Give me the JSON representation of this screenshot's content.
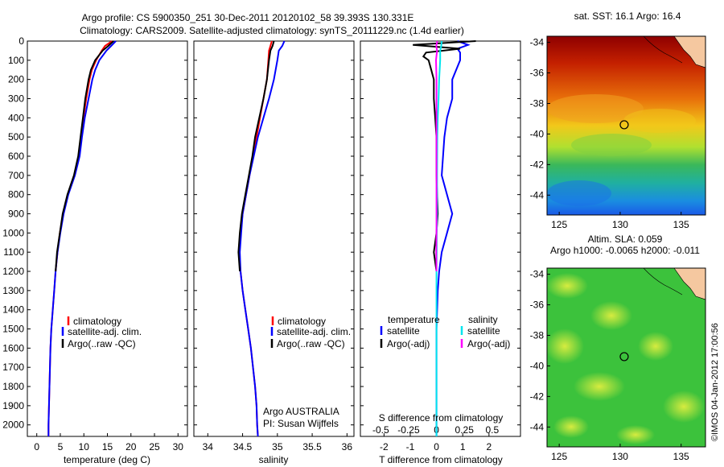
{
  "header": {
    "line1": "Argo profile: CS 5900350_251 30-Dec-2011 20120102_58 39.393S 130.331E",
    "line2": "Climatology: CARS2009. Satellite-adjusted climatology: synTS_20111229.nc (1.4d earlier)"
  },
  "colors": {
    "climatology": "#ff0000",
    "satellite": "#0000ff",
    "argo": "#000000",
    "sat_s": "#00e5ee",
    "argo_s": "#ff00ff"
  },
  "chart_data": [
    {
      "type": "line",
      "id": "temperature",
      "xlabel": "temperature (deg C)",
      "ylabel": "",
      "xlim": [
        -2,
        32
      ],
      "ylim": [
        2060,
        0
      ],
      "xticks": [
        0,
        5,
        10,
        15,
        20,
        25,
        30
      ],
      "yticks": [
        0,
        100,
        200,
        300,
        400,
        500,
        600,
        700,
        800,
        900,
        1000,
        1100,
        1200,
        1300,
        1400,
        1500,
        1600,
        1700,
        1800,
        1900,
        2000
      ],
      "legend": [
        "climatology",
        "satellite-adj. clim.",
        "Argo(..raw -QC)"
      ],
      "series": [
        {
          "name": "climatology",
          "color": "#ff0000",
          "depth": [
            0,
            25,
            50,
            100,
            150,
            200,
            300,
            400,
            500,
            600,
            700,
            800,
            900,
            1000,
            1100,
            1200,
            1300,
            1400,
            1500,
            1600,
            1700,
            1800,
            1900,
            2000,
            2060
          ],
          "values": [
            16.0,
            14.5,
            13.8,
            12.6,
            11.7,
            11.2,
            10.5,
            9.9,
            9.4,
            8.9,
            8.0,
            6.6,
            5.6,
            4.9,
            4.4,
            4.0,
            3.7,
            3.4,
            3.1,
            2.9,
            2.8,
            2.7,
            2.6,
            2.5,
            2.5
          ]
        },
        {
          "name": "satellite-adj. clim.",
          "color": "#0000ff",
          "depth": [
            0,
            25,
            50,
            100,
            150,
            200,
            300,
            400,
            500,
            600,
            700,
            800,
            900,
            1000,
            1100,
            1200,
            1300,
            1400,
            1500,
            1600,
            1700,
            1800,
            1900,
            2000,
            2060
          ],
          "values": [
            16.8,
            15.8,
            14.8,
            13.3,
            12.4,
            11.8,
            11.0,
            10.2,
            9.6,
            9.1,
            8.1,
            6.7,
            5.7,
            5.0,
            4.4,
            4.0,
            3.7,
            3.4,
            3.1,
            2.9,
            2.8,
            2.7,
            2.6,
            2.5,
            2.5
          ]
        },
        {
          "name": "Argo(..raw -QC)",
          "color": "#000000",
          "depth": [
            0,
            25,
            50,
            100,
            150,
            200,
            300,
            400,
            500,
            600,
            700,
            800,
            900,
            1000,
            1100,
            1200
          ],
          "values": [
            16.3,
            15.2,
            14.0,
            12.4,
            11.5,
            11.0,
            10.3,
            9.8,
            9.3,
            8.8,
            7.9,
            6.5,
            5.5,
            4.9,
            4.3,
            4.0
          ]
        }
      ]
    },
    {
      "type": "line",
      "id": "salinity",
      "xlabel": "salinity",
      "ylabel": "",
      "xlim": [
        33.8,
        36.1
      ],
      "ylim": [
        2060,
        0
      ],
      "xticks": [
        34,
        34.5,
        35,
        35.5,
        36
      ],
      "legend": [
        "climatology",
        "satellite-adj. clim.",
        "Argo(..raw -QC)"
      ],
      "annotation": [
        "Argo AUSTRALIA",
        "PI: Susan Wijffels"
      ],
      "series": [
        {
          "name": "climatology",
          "color": "#ff0000",
          "depth": [
            0,
            25,
            50,
            100,
            200,
            300,
            400,
            500,
            600,
            700,
            800,
            900,
            1000,
            1100,
            1200,
            1300,
            1400,
            1500,
            1600,
            1700,
            1800,
            1900,
            2000,
            2060
          ],
          "values": [
            34.92,
            34.9,
            34.88,
            34.87,
            34.85,
            34.8,
            34.75,
            34.7,
            34.65,
            34.6,
            34.55,
            34.5,
            34.47,
            34.45,
            34.47,
            34.5,
            34.54,
            34.58,
            34.62,
            34.65,
            34.68,
            34.7,
            34.71,
            34.72
          ]
        },
        {
          "name": "satellite-adj. clim.",
          "color": "#0000ff",
          "depth": [
            0,
            25,
            50,
            100,
            200,
            300,
            400,
            500,
            600,
            700,
            800,
            900,
            1000,
            1100,
            1200,
            1300,
            1400,
            1500,
            1600,
            1700,
            1800,
            1900,
            2000,
            2060
          ],
          "values": [
            35.1,
            35.07,
            35.02,
            35.0,
            34.95,
            34.88,
            34.8,
            34.72,
            34.66,
            34.6,
            34.55,
            34.5,
            34.48,
            34.46,
            34.47,
            34.5,
            34.54,
            34.58,
            34.62,
            34.65,
            34.68,
            34.7,
            34.71,
            34.72
          ]
        },
        {
          "name": "Argo(..raw -QC)",
          "color": "#000000",
          "depth": [
            0,
            25,
            50,
            100,
            200,
            300,
            400,
            500,
            600,
            700,
            800,
            900,
            1000,
            1100,
            1200
          ],
          "values": [
            34.95,
            34.93,
            34.9,
            34.88,
            34.85,
            34.8,
            34.74,
            34.68,
            34.64,
            34.59,
            34.54,
            34.49,
            34.46,
            34.44,
            34.46
          ]
        }
      ]
    },
    {
      "type": "line",
      "id": "difference",
      "xlabel": "T difference from climatology",
      "title_bottom": "S difference from climatology",
      "xlim": [
        -2.9,
        3.2
      ],
      "ylim": [
        2060,
        0
      ],
      "xticks": [
        -2,
        -1,
        0,
        1,
        2
      ],
      "secondary_xticks": [
        "-0.5",
        "-0.25",
        "0",
        "0.25",
        "0.5"
      ],
      "legend": {
        "temperature": [
          "satellite",
          "Argo(-adj)"
        ],
        "salinity": [
          "satellite",
          "Argo(-adj)"
        ]
      },
      "series": [
        {
          "name": "T satellite",
          "color": "#0000ff",
          "depth": [
            0,
            20,
            40,
            60,
            100,
            200,
            300,
            400,
            500,
            700,
            900,
            1000,
            1100,
            1200,
            1300,
            1500,
            1700,
            1900,
            2060
          ],
          "values": [
            0.8,
            1.2,
            0.8,
            0.9,
            0.9,
            0.6,
            0.6,
            0.4,
            0.3,
            0.2,
            0.6,
            0.4,
            0.2,
            0.1,
            0.05,
            0.0,
            0.0,
            0.0,
            0.0
          ]
        },
        {
          "name": "T Argo(-adj)",
          "color": "#000000",
          "depth": [
            0,
            20,
            40,
            60,
            80,
            100,
            150,
            200,
            300,
            400,
            500,
            700,
            900,
            1000,
            1100,
            1200
          ],
          "values": [
            1.5,
            -0.9,
            0.9,
            -0.4,
            -0.5,
            -0.3,
            -0.2,
            -0.1,
            -0.1,
            -0.05,
            0.0,
            0.0,
            0.05,
            0.0,
            -0.1,
            0.0
          ]
        },
        {
          "name": "S satellite",
          "color": "#00e5ee",
          "depth": [
            0,
            25,
            50,
            100,
            200,
            300,
            400,
            500,
            700,
            900,
            1000,
            1100,
            1200,
            1300,
            1500,
            1700,
            1900,
            2060
          ],
          "values": [
            0.2,
            0.18,
            0.14,
            0.14,
            0.1,
            0.08,
            0.05,
            0.03,
            0.02,
            0.02,
            0.01,
            0.01,
            0.0,
            0.0,
            0.0,
            0.0,
            0.0,
            0.0
          ]
        },
        {
          "name": "S Argo(-adj)",
          "color": "#ff00ff",
          "depth": [
            0,
            25,
            50,
            100,
            200,
            300,
            400,
            500,
            700,
            900,
            1000,
            1100,
            1200
          ],
          "values": [
            0.03,
            -0.01,
            0.02,
            -0.02,
            0.0,
            0.0,
            0.0,
            0.0,
            0.0,
            0.0,
            0.0,
            -0.01,
            0.0
          ]
        }
      ]
    },
    {
      "type": "heatmap",
      "id": "sst_map",
      "title": "sat. SST: 16.1  Argo: 16.4",
      "xticks": [
        125,
        130,
        135
      ],
      "yticks": [
        -34,
        -36,
        -38,
        -40,
        -42,
        -44
      ],
      "xlim": [
        124,
        137
      ],
      "ylim": [
        -45.3,
        -33.6
      ],
      "marker": {
        "lon": 130.331,
        "lat": -39.393
      }
    },
    {
      "type": "heatmap",
      "id": "sla_map",
      "title": "Altim. SLA: 0.059",
      "subtitle": "Argo h1000: -0.0065 h2000: -0.011",
      "xticks": [
        125,
        130,
        135
      ],
      "yticks": [
        -34,
        -36,
        -38,
        -40,
        -42,
        -44
      ],
      "xlim": [
        124,
        137
      ],
      "ylim": [
        -45.3,
        -33.6
      ],
      "marker": {
        "lon": 130.331,
        "lat": -39.393
      }
    }
  ],
  "credit": "©IMOS 04-Jan-2012 17:00:56"
}
